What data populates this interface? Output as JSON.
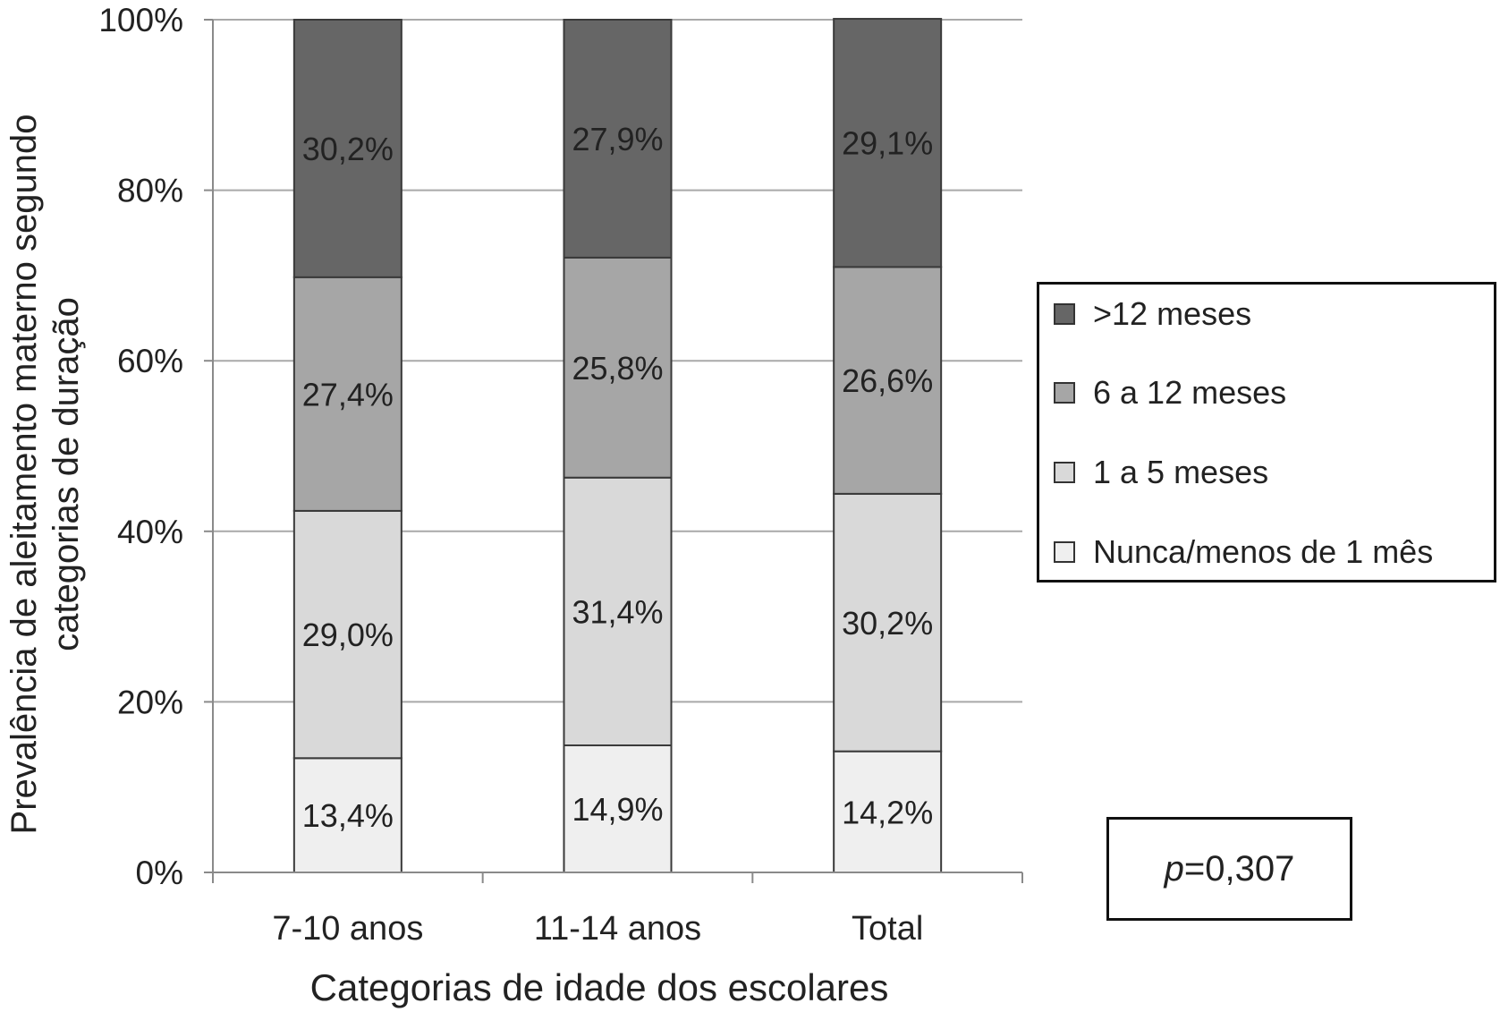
{
  "chart_data": {
    "type": "bar",
    "stacked": true,
    "title": "",
    "ylabel_lines": [
      "Prevalência de aleitamento materno segundo",
      "categorias de duração"
    ],
    "xlabel": "Categorias de idade dos escolares",
    "ylim": [
      0,
      100
    ],
    "yticks": [
      "0%",
      "20%",
      "40%",
      "60%",
      "80%",
      "100%"
    ],
    "categories": [
      "7-10 anos",
      "11-14 anos",
      "Total"
    ],
    "series": [
      {
        "name": "Nunca/menos de 1 mês",
        "values": [
          13.4,
          14.9,
          14.2
        ],
        "labels": [
          "13,4%",
          "14,9%",
          "14,2%"
        ],
        "color": "#efefef"
      },
      {
        "name": "1 a 5 meses",
        "values": [
          29.0,
          31.4,
          30.2
        ],
        "labels": [
          "29,0%",
          "31,4%",
          "30,2%"
        ],
        "color": "#d9d9d9"
      },
      {
        "name": "6 a 12 meses",
        "values": [
          27.4,
          25.8,
          26.6
        ],
        "labels": [
          "27,4%",
          "25,8%",
          "26,6%"
        ],
        "color": "#a6a6a6"
      },
      {
        "name": ">12 meses",
        "values": [
          30.2,
          27.9,
          29.1
        ],
        "labels": [
          "30,2%",
          "27,9%",
          "29,1%"
        ],
        "color": "#666666"
      }
    ],
    "grid": true,
    "legend_position": "right",
    "annotation": {
      "italic": "p",
      "text": "=0,307"
    }
  }
}
